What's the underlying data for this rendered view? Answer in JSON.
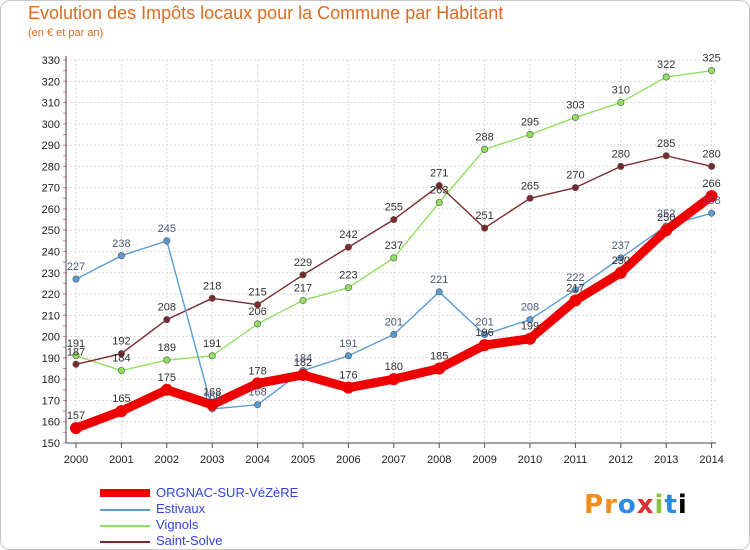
{
  "header": {
    "title": "Evolution des Impôts locaux pour la Commune par Habitant",
    "subtitle": "(en € et par an)"
  },
  "brand": "Proxiti",
  "chart_data": {
    "type": "line",
    "title": "Evolution des Impôts locaux pour la Commune par Habitant",
    "subtitle": "(en € et par an)",
    "xlabel": "",
    "ylabel": "",
    "categories": [
      "2000",
      "2001",
      "2002",
      "2003",
      "2004",
      "2005",
      "2006",
      "2007",
      "2008",
      "2009",
      "2010",
      "2011",
      "2012",
      "2013",
      "2014"
    ],
    "ylim": [
      150,
      330
    ],
    "yticks": [
      150,
      160,
      170,
      180,
      190,
      200,
      210,
      220,
      230,
      240,
      250,
      260,
      270,
      280,
      290,
      300,
      310,
      320,
      330
    ],
    "grid": true,
    "legend_position": "bottom-left",
    "series": [
      {
        "name": "ORGNAC-SUR-VéZèRE",
        "color": "#ee0000",
        "values": [
          157,
          165,
          175,
          168,
          178,
          182,
          176,
          180,
          185,
          196,
          199,
          217,
          230,
          250,
          266
        ],
        "labels": [
          "157",
          "165",
          "175",
          "168",
          "178",
          "182",
          "176",
          "180",
          "185",
          "196",
          "199",
          "217",
          "230",
          "250",
          "266"
        ]
      },
      {
        "name": "Estivaux",
        "color": "#5b9bd5",
        "values": [
          227,
          238,
          245,
          166,
          168,
          184,
          191,
          201,
          221,
          201,
          208,
          222,
          237,
          252,
          258
        ],
        "labels": [
          "227",
          "238",
          "245",
          "166",
          "168",
          "184",
          "191",
          "201",
          "221",
          "201",
          "208",
          "222",
          "237",
          "252",
          "258"
        ]
      },
      {
        "name": "Vignols",
        "color": "#90e060",
        "values": [
          191,
          184,
          189,
          191,
          206,
          217,
          223,
          237,
          263,
          288,
          295,
          303,
          310,
          322,
          325
        ],
        "labels": [
          "191",
          "184",
          "189",
          "191",
          "206",
          "217",
          "223",
          "237",
          "263",
          "288",
          "295",
          "303",
          "310",
          "322",
          "325"
        ]
      },
      {
        "name": "Saint-Solve",
        "color": "#7a2a2a",
        "values": [
          187,
          192,
          208,
          218,
          215,
          229,
          242,
          255,
          271,
          251,
          265,
          270,
          280,
          285,
          280
        ],
        "labels": [
          "187",
          "192",
          "208",
          "218",
          "215",
          "229",
          "242",
          "255",
          "271",
          "251",
          "265",
          "270",
          "280",
          "285",
          "280"
        ]
      }
    ]
  }
}
